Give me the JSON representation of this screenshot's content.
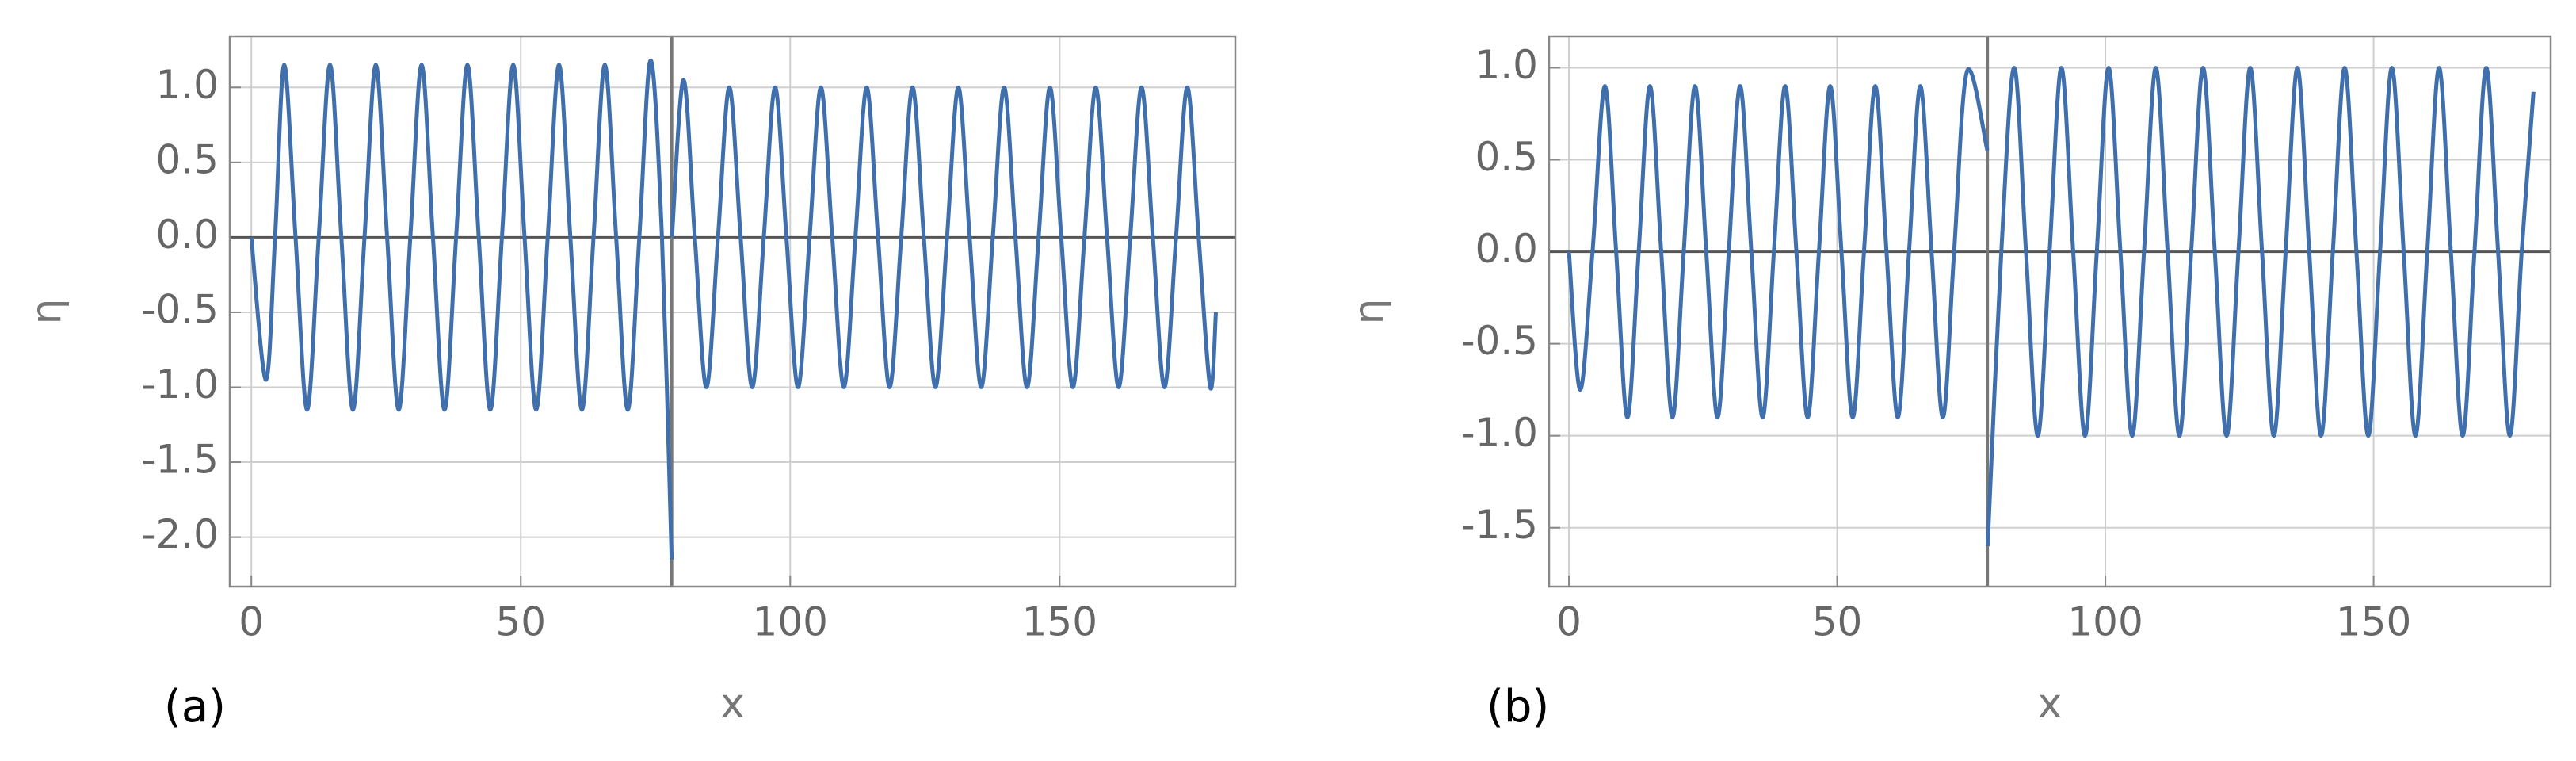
{
  "chart_data": [
    {
      "type": "line",
      "panel_label": "(a)",
      "xlabel": "x",
      "ylabel": "η",
      "color": "#3f6fad",
      "vline": 78,
      "grid": true,
      "xlim": [
        -4,
        182.6
      ],
      "ylim": [
        -2.33,
        1.34
      ],
      "xticks": [
        0,
        50,
        100,
        150
      ],
      "yticks": [
        {
          "value": 1,
          "label": "1.0"
        },
        0.5,
        {
          "value": 0,
          "label": "0.0"
        },
        -0.5,
        {
          "value": -1,
          "label": "-1.0"
        },
        -1.5,
        {
          "value": -2,
          "label": "-2.0"
        }
      ],
      "x": [
        0,
        2.7,
        4.4,
        6.1,
        8.2,
        10.35,
        12.5,
        14.6,
        16.7,
        18.85,
        21,
        23.1,
        25.2,
        27.35,
        29.5,
        31.6,
        33.7,
        35.85,
        38,
        40.1,
        42.2,
        44.35,
        46.5,
        48.6,
        50.7,
        52.85,
        55,
        57.1,
        59.2,
        61.35,
        63.5,
        65.6,
        67.7,
        69.85,
        72,
        74.1,
        76.2,
        78,
        77.99,
        78.05,
        80.2,
        82.3,
        84.45,
        86.6,
        88.7,
        90.8,
        92.95,
        95.1,
        97.2,
        99.3,
        101.45,
        103.6,
        105.7,
        107.8,
        109.95,
        112.1,
        114.2,
        116.3,
        118.45,
        120.6,
        122.7,
        124.8,
        126.95,
        129.1,
        131.2,
        133.3,
        135.45,
        137.6,
        139.7,
        141.8,
        143.95,
        146.1,
        148.2,
        150.3,
        152.45,
        154.6,
        156.7,
        158.8,
        160.95,
        163.1,
        165.2,
        167.3,
        169.45,
        171.6,
        173.7,
        175.8,
        177.95,
        179
      ],
      "values": [
        0,
        -0.95,
        0,
        1.15,
        0,
        -1.15,
        0,
        1.15,
        0,
        -1.15,
        0,
        1.15,
        0,
        -1.15,
        0,
        1.15,
        0,
        -1.15,
        0,
        1.15,
        0,
        -1.15,
        0,
        1.15,
        0,
        -1.15,
        0,
        1.15,
        0,
        -1.15,
        0,
        1.15,
        0,
        -1.15,
        0,
        1.18,
        0,
        -2.15,
        null,
        0,
        1.05,
        0,
        -1,
        0,
        1,
        0,
        -1,
        0,
        1,
        0,
        -1,
        0,
        1,
        0,
        -1,
        0,
        1,
        0,
        -1,
        0,
        1,
        0,
        -1,
        0,
        1,
        0,
        -1,
        0,
        1,
        0,
        -1,
        0,
        1,
        0,
        -1,
        0,
        1,
        0,
        -1,
        0,
        1,
        0,
        -1,
        0,
        1,
        0,
        -1,
        -0.5
      ]
    },
    {
      "type": "line",
      "panel_label": "(b)",
      "xlabel": "x",
      "ylabel": "η",
      "color": "#3f6fad",
      "vline": 78,
      "grid": true,
      "xlim": [
        -3.7,
        183
      ],
      "ylim": [
        -1.82,
        1.17
      ],
      "xticks": [
        0,
        50,
        100,
        150
      ],
      "yticks": [
        {
          "value": 1,
          "label": "1.0"
        },
        0.5,
        {
          "value": 0,
          "label": "0.0"
        },
        -0.5,
        {
          "value": -1,
          "label": "-1.0"
        },
        -1.5
      ],
      "x": [
        0,
        2.1,
        4.4,
        6.7,
        8.8,
        10.9,
        13,
        15.1,
        17.2,
        19.3,
        21.4,
        23.5,
        25.6,
        27.7,
        29.8,
        31.9,
        34,
        36.1,
        38.2,
        40.3,
        42.4,
        44.5,
        46.6,
        48.7,
        50.8,
        52.9,
        55,
        57.1,
        59.2,
        61.3,
        63.4,
        65.5,
        67.6,
        69.7,
        71.8,
        74.2,
        78,
        77.99,
        78.05,
        80.6,
        83,
        85.2,
        87.4,
        89.6,
        91.8,
        94,
        96.2,
        98.4,
        100.6,
        102.8,
        105,
        107.2,
        109.4,
        111.6,
        113.8,
        116,
        118.2,
        120.4,
        122.6,
        124.8,
        127,
        129.2,
        131.4,
        133.6,
        135.8,
        138,
        140.2,
        142.4,
        144.6,
        146.8,
        149,
        151.2,
        153.4,
        155.6,
        157.8,
        160,
        162.2,
        164.4,
        166.6,
        168.8,
        171,
        173.2,
        175.4,
        177.6,
        179.8
      ],
      "values": [
        0,
        -0.75,
        0,
        0.9,
        0,
        -0.9,
        0,
        0.9,
        0,
        -0.9,
        0,
        0.9,
        0,
        -0.9,
        0,
        0.9,
        0,
        -0.9,
        0,
        0.9,
        0,
        -0.9,
        0,
        0.9,
        0,
        -0.9,
        0,
        0.9,
        0,
        -0.9,
        0,
        0.9,
        0,
        -0.9,
        0,
        0.98,
        0.55,
        null,
        -1.6,
        0,
        1,
        0,
        -1,
        0,
        1,
        0,
        -1,
        0,
        1,
        0,
        -1,
        0,
        1,
        0,
        -1,
        0,
        1,
        0,
        -1,
        0,
        1,
        0,
        -1,
        0,
        1,
        0,
        -1,
        0,
        1,
        0,
        -1,
        0,
        1,
        0,
        -1,
        0,
        1,
        0,
        -1,
        0,
        1,
        0,
        -1,
        0,
        0.87
      ]
    }
  ]
}
